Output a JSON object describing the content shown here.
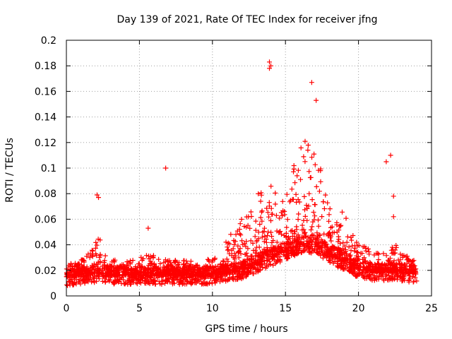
{
  "chart_data": {
    "type": "scatter",
    "title": "Day 139 of 2021, Rate Of TEC Index for receiver jfng",
    "xlabel": "GPS time / hours",
    "ylabel": "ROTI / TECUs",
    "xlim": [
      0,
      25
    ],
    "ylim": [
      0,
      0.2
    ],
    "xticks": [
      0,
      5,
      10,
      15,
      20,
      25
    ],
    "xtick_labels": [
      "0",
      "5",
      "10",
      "15",
      "20",
      "25"
    ],
    "yticks": [
      0,
      0.02,
      0.04,
      0.06,
      0.08,
      0.1,
      0.12,
      0.14,
      0.16,
      0.18,
      0.2
    ],
    "ytick_labels": [
      "0",
      "0.02",
      "0.04",
      "0.06",
      "0.08",
      "0.1",
      "0.12",
      "0.14",
      "0.16",
      "0.18",
      "0.2"
    ],
    "grid": true,
    "marker": "+",
    "color": "#ff0000",
    "series": [
      {
        "name": "ROTI",
        "envelope": {
          "x": [
            0,
            1,
            1.8,
            2.2,
            2.7,
            3.5,
            4.5,
            5.5,
            6.5,
            7.5,
            8.5,
            9.5,
            10.5,
            11.5,
            12.5,
            13,
            13.5,
            14,
            14.5,
            15,
            15.5,
            16,
            16.5,
            17,
            17.5,
            18,
            18.5,
            19,
            19.5,
            20,
            21,
            22,
            22.5,
            23,
            24
          ],
          "base": [
            0.015,
            0.016,
            0.017,
            0.018,
            0.017,
            0.016,
            0.016,
            0.016,
            0.016,
            0.016,
            0.016,
            0.016,
            0.017,
            0.019,
            0.022,
            0.025,
            0.028,
            0.03,
            0.033,
            0.035,
            0.037,
            0.04,
            0.041,
            0.04,
            0.037,
            0.033,
            0.03,
            0.027,
            0.024,
            0.021,
            0.019,
            0.019,
            0.02,
            0.018,
            0.017
          ],
          "spread": [
            0.01,
            0.012,
            0.02,
            0.03,
            0.014,
            0.012,
            0.012,
            0.018,
            0.014,
            0.012,
            0.012,
            0.012,
            0.018,
            0.035,
            0.05,
            0.055,
            0.06,
            0.065,
            0.06,
            0.06,
            0.065,
            0.08,
            0.09,
            0.075,
            0.06,
            0.045,
            0.04,
            0.04,
            0.03,
            0.022,
            0.015,
            0.015,
            0.022,
            0.015,
            0.01
          ]
        },
        "notable_points": [
          {
            "x": 2.1,
            "y": 0.079
          },
          {
            "x": 2.2,
            "y": 0.077
          },
          {
            "x": 5.6,
            "y": 0.053
          },
          {
            "x": 6.8,
            "y": 0.1
          },
          {
            "x": 13.9,
            "y": 0.183
          },
          {
            "x": 14.0,
            "y": 0.18
          },
          {
            "x": 13.9,
            "y": 0.178
          },
          {
            "x": 16.8,
            "y": 0.167
          },
          {
            "x": 17.1,
            "y": 0.153
          },
          {
            "x": 22.2,
            "y": 0.11
          },
          {
            "x": 21.9,
            "y": 0.105
          },
          {
            "x": 22.4,
            "y": 0.078
          },
          {
            "x": 22.4,
            "y": 0.062
          }
        ],
        "n_points": 2600
      }
    ]
  }
}
